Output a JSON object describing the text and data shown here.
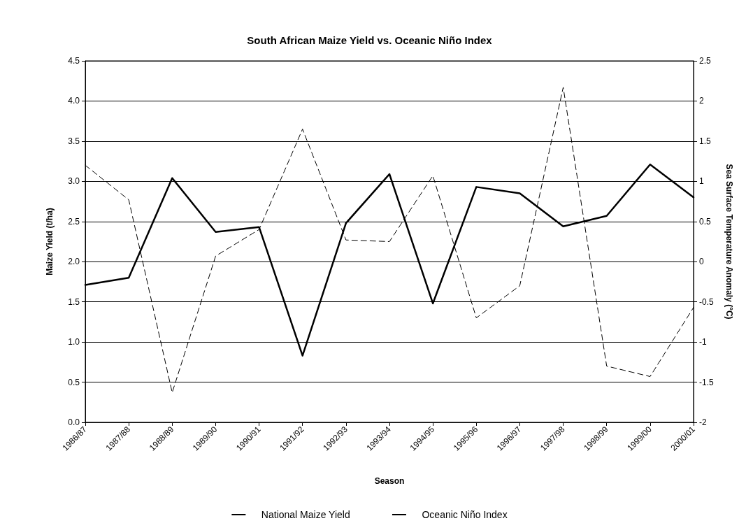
{
  "chart_data": {
    "type": "line",
    "title": "South African Maize Yield vs. Oceanic Niño Index",
    "xlabel": "Season",
    "ylabel": "Maize Yield (t/ha)",
    "y2label": "Sea Surface Temperature Anomaly (°C)",
    "categories": [
      "1986/87",
      "1987/88",
      "1988/89",
      "1989/90",
      "1990/91",
      "1991/92",
      "1992/93",
      "1993/94",
      "1994/95",
      "1995/96",
      "1996/97",
      "1997/98",
      "1998/99",
      "1999/00",
      "2000/01"
    ],
    "series": [
      {
        "name": "National Maize Yield",
        "color": "#000000",
        "line_style": "solid",
        "values": [
          1.71,
          1.8,
          3.04,
          2.37,
          2.43,
          0.83,
          2.48,
          3.09,
          1.48,
          2.93,
          2.85,
          2.44,
          2.57,
          3.21,
          2.8
        ]
      },
      {
        "name": "Oceanic Niño Index",
        "color": "#000000",
        "line_style": "dashed",
        "axis": "y2",
        "values": [
          1.2,
          0.77,
          -1.63,
          0.07,
          0.4,
          1.65,
          0.27,
          0.25,
          1.07,
          -0.7,
          -0.3,
          2.17,
          -1.3,
          -1.43,
          -0.57
        ]
      }
    ],
    "ylim": [
      0,
      4.5
    ],
    "yticks": [
      {
        "value": 0,
        "label": "0.0"
      },
      {
        "value": 0.5,
        "label": "0.5"
      },
      {
        "value": 1,
        "label": "1.0"
      },
      {
        "value": 1.5,
        "label": "1.5"
      },
      {
        "value": 2,
        "label": "2.0"
      },
      {
        "value": 2.5,
        "label": "2.5"
      },
      {
        "value": 3,
        "label": "3.0"
      },
      {
        "value": 3.5,
        "label": "3.5"
      },
      {
        "value": 4,
        "label": "4.0"
      },
      {
        "value": 4.5,
        "label": "4.5"
      }
    ],
    "y2lim": [
      -2,
      2.5
    ],
    "y2ticks": [
      -2,
      -1.5,
      -1,
      -0.5,
      0,
      0.5,
      1,
      1.5,
      2,
      2.5
    ],
    "grid": "y",
    "legend": "bottom",
    "marker": "none"
  }
}
